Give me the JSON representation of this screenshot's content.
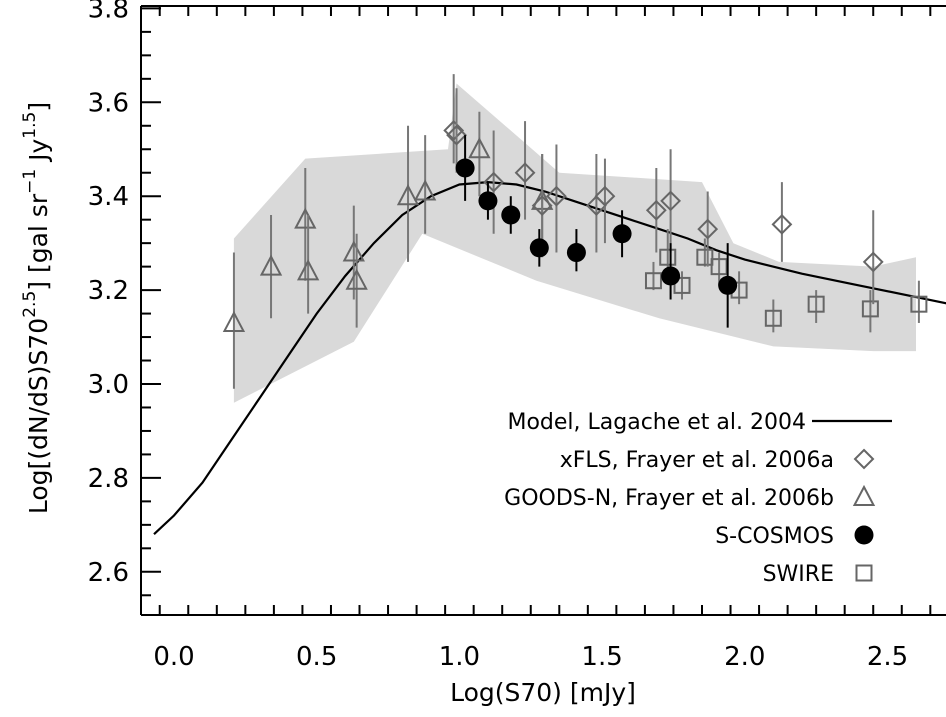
{
  "chart_data": {
    "type": "scatter",
    "xlabel": "Log(S70) [mJy]",
    "ylabel": "Log[(dN/dS)S70^2.5] [gal sr^-1 Jy^1.5]",
    "ylabel_parts": {
      "a": "Log[(dN/dS)S70",
      "sup1": "2.5",
      "b": "] [gal sr",
      "sup2": "−1",
      "c": " Jy",
      "sup3": "1.5",
      "d": "]"
    },
    "xlim": [
      -0.07,
      2.8
    ],
    "ylim": [
      2.5,
      3.82
    ],
    "x_ticks": [
      {
        "value": 0.0,
        "label": "0.0"
      },
      {
        "value": 0.5,
        "label": "0.5"
      },
      {
        "value": 1.0,
        "label": "1.0"
      },
      {
        "value": 1.5,
        "label": "1.5"
      },
      {
        "value": 2.0,
        "label": "2.0"
      },
      {
        "value": 2.5,
        "label": "2.5"
      }
    ],
    "y_ticks": [
      {
        "value": 2.6,
        "label": "2.6"
      },
      {
        "value": 2.8,
        "label": "2.8"
      },
      {
        "value": 3.0,
        "label": "3.0"
      },
      {
        "value": 3.2,
        "label": "3.2"
      },
      {
        "value": 3.4,
        "label": "3.4"
      },
      {
        "value": 3.6,
        "label": "3.6"
      },
      {
        "value": 3.8,
        "label": "3.8"
      }
    ],
    "legend_position": "bottom-right",
    "band": {
      "upper": [
        [
          0.21,
          3.31
        ],
        [
          0.46,
          3.48
        ],
        [
          0.96,
          3.5
        ],
        [
          0.99,
          3.64
        ],
        [
          1.35,
          3.45
        ],
        [
          1.85,
          3.43
        ],
        [
          1.96,
          3.3
        ],
        [
          2.12,
          3.26
        ],
        [
          2.45,
          3.25
        ],
        [
          2.6,
          3.27
        ]
      ],
      "lower": [
        [
          0.21,
          2.96
        ],
        [
          0.63,
          3.09
        ],
        [
          0.87,
          3.32
        ],
        [
          1.27,
          3.22
        ],
        [
          1.7,
          3.14
        ],
        [
          2.1,
          3.08
        ],
        [
          2.45,
          3.07
        ],
        [
          2.6,
          3.07
        ]
      ],
      "color": "#d9d9d9"
    },
    "series": [
      {
        "name": "Model, Lagache et al. 2004",
        "marker": "line",
        "color": "#000000",
        "points": [
          [
            -0.07,
            2.68
          ],
          [
            0.0,
            2.72
          ],
          [
            0.1,
            2.79
          ],
          [
            0.2,
            2.88
          ],
          [
            0.3,
            2.97
          ],
          [
            0.4,
            3.06
          ],
          [
            0.5,
            3.15
          ],
          [
            0.6,
            3.23
          ],
          [
            0.7,
            3.3
          ],
          [
            0.8,
            3.36
          ],
          [
            0.9,
            3.4
          ],
          [
            1.0,
            3.425
          ],
          [
            1.1,
            3.43
          ],
          [
            1.2,
            3.425
          ],
          [
            1.3,
            3.41
          ],
          [
            1.4,
            3.39
          ],
          [
            1.5,
            3.37
          ],
          [
            1.6,
            3.35
          ],
          [
            1.7,
            3.33
          ],
          [
            1.8,
            3.31
          ],
          [
            1.9,
            3.285
          ],
          [
            2.0,
            3.265
          ],
          [
            2.2,
            3.235
          ],
          [
            2.4,
            3.21
          ],
          [
            2.6,
            3.185
          ],
          [
            2.8,
            3.16
          ]
        ]
      },
      {
        "name": "xFLS, Frayer et al. 2006a",
        "marker": "diamond",
        "color": "#666666",
        "points": [
          {
            "x": 0.98,
            "y": 3.54,
            "lo": 3.47,
            "hi": 3.66
          },
          {
            "x": 0.99,
            "y": 3.53,
            "lo": 3.45,
            "hi": 3.63
          },
          {
            "x": 1.12,
            "y": 3.43,
            "lo": 3.32,
            "hi": 3.54
          },
          {
            "x": 1.23,
            "y": 3.45,
            "lo": 3.35,
            "hi": 3.56
          },
          {
            "x": 1.29,
            "y": 3.38,
            "lo": 3.27,
            "hi": 3.49
          },
          {
            "x": 1.34,
            "y": 3.4,
            "lo": 3.28,
            "hi": 3.51
          },
          {
            "x": 1.48,
            "y": 3.38,
            "lo": 3.28,
            "hi": 3.49
          },
          {
            "x": 1.51,
            "y": 3.4,
            "lo": 3.3,
            "hi": 3.48
          },
          {
            "x": 1.69,
            "y": 3.37,
            "lo": 3.28,
            "hi": 3.46
          },
          {
            "x": 1.74,
            "y": 3.39,
            "lo": 3.28,
            "hi": 3.5
          },
          {
            "x": 1.87,
            "y": 3.33,
            "lo": 3.25,
            "hi": 3.41
          },
          {
            "x": 2.13,
            "y": 3.34,
            "lo": 3.26,
            "hi": 3.43
          },
          {
            "x": 2.45,
            "y": 3.26,
            "lo": 3.17,
            "hi": 3.37
          }
        ]
      },
      {
        "name": "GOODS-N, Frayer et al. 2006b",
        "marker": "triangle",
        "color": "#666666",
        "points": [
          {
            "x": 0.21,
            "y": 3.13,
            "lo": 2.99,
            "hi": 3.28
          },
          {
            "x": 0.34,
            "y": 3.25,
            "lo": 3.14,
            "hi": 3.36
          },
          {
            "x": 0.46,
            "y": 3.35,
            "lo": 3.22,
            "hi": 3.46
          },
          {
            "x": 0.47,
            "y": 3.24,
            "lo": 3.15,
            "hi": 3.36
          },
          {
            "x": 0.63,
            "y": 3.28,
            "lo": 3.18,
            "hi": 3.38
          },
          {
            "x": 0.64,
            "y": 3.22,
            "lo": 3.12,
            "hi": 3.32
          },
          {
            "x": 0.82,
            "y": 3.4,
            "lo": 3.26,
            "hi": 3.55
          },
          {
            "x": 0.88,
            "y": 3.41,
            "lo": 3.32,
            "hi": 3.53
          },
          {
            "x": 1.07,
            "y": 3.5,
            "lo": 3.4,
            "hi": 3.58
          },
          {
            "x": 1.29,
            "y": 3.39,
            "lo": 3.28,
            "hi": 3.49
          }
        ]
      },
      {
        "name": "S-COSMOS",
        "marker": "filled-circle",
        "color": "#000000",
        "points": [
          {
            "x": 1.02,
            "y": 3.46,
            "lo": 3.39,
            "hi": 3.53
          },
          {
            "x": 1.1,
            "y": 3.39,
            "lo": 3.35,
            "hi": 3.43
          },
          {
            "x": 1.18,
            "y": 3.36,
            "lo": 3.32,
            "hi": 3.4
          },
          {
            "x": 1.28,
            "y": 3.29,
            "lo": 3.25,
            "hi": 3.33
          },
          {
            "x": 1.41,
            "y": 3.28,
            "lo": 3.24,
            "hi": 3.33
          },
          {
            "x": 1.57,
            "y": 3.32,
            "lo": 3.27,
            "hi": 3.37
          },
          {
            "x": 1.74,
            "y": 3.23,
            "lo": 3.18,
            "hi": 3.3
          },
          {
            "x": 1.94,
            "y": 3.21,
            "lo": 3.12,
            "hi": 3.3
          }
        ]
      },
      {
        "name": "SWIRE",
        "marker": "square",
        "color": "#666666",
        "points": [
          {
            "x": 1.68,
            "y": 3.22,
            "lo": 3.2,
            "hi": 3.26
          },
          {
            "x": 1.73,
            "y": 3.27,
            "lo": 3.22,
            "hi": 3.33
          },
          {
            "x": 1.78,
            "y": 3.21,
            "lo": 3.18,
            "hi": 3.24
          },
          {
            "x": 1.86,
            "y": 3.27,
            "lo": 3.25,
            "hi": 3.31
          },
          {
            "x": 1.91,
            "y": 3.25,
            "lo": 3.21,
            "hi": 3.28
          },
          {
            "x": 1.98,
            "y": 3.2,
            "lo": 3.17,
            "hi": 3.24
          },
          {
            "x": 2.1,
            "y": 3.14,
            "lo": 3.11,
            "hi": 3.18
          },
          {
            "x": 2.25,
            "y": 3.17,
            "lo": 3.13,
            "hi": 3.2
          },
          {
            "x": 2.44,
            "y": 3.16,
            "lo": 3.11,
            "hi": 3.2
          },
          {
            "x": 2.61,
            "y": 3.17,
            "lo": 3.13,
            "hi": 3.22
          }
        ]
      }
    ]
  }
}
